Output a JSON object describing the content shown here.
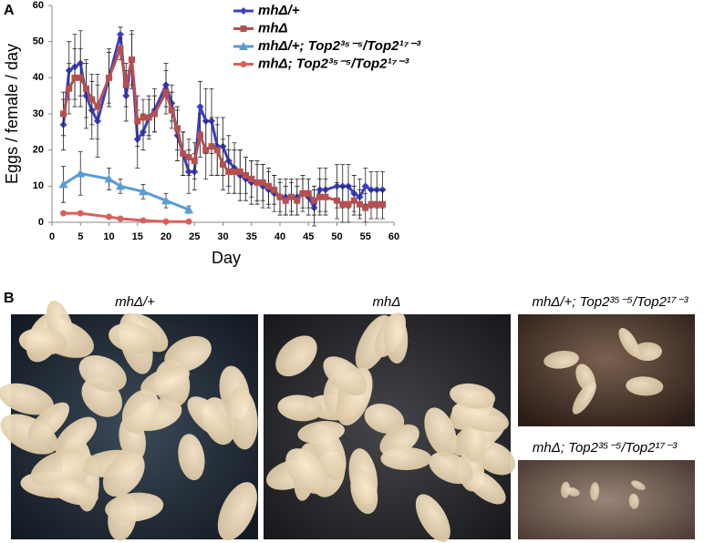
{
  "panel_a_label": "A",
  "chart_data": {
    "type": "line",
    "xlabel": "Day",
    "ylabel": "Eggs / female / day",
    "xlim": [
      0,
      60
    ],
    "xticks": [
      0,
      5,
      10,
      15,
      20,
      25,
      30,
      35,
      40,
      45,
      50,
      55,
      60
    ],
    "ylim": [
      0,
      60
    ],
    "yticks": [
      0,
      10,
      20,
      30,
      40,
      50,
      60
    ],
    "series": [
      {
        "name": "mhΔ/+",
        "color": "#3b3fc4",
        "marker": "diamond",
        "x": [
          2,
          3,
          4,
          5,
          6,
          7,
          8,
          10,
          12,
          13,
          14,
          15,
          16,
          17,
          18,
          20,
          21,
          22,
          23,
          24,
          25,
          26,
          27,
          28,
          29,
          30,
          31,
          32,
          33,
          34,
          35,
          36,
          37,
          38,
          39,
          40,
          41,
          42,
          43,
          44,
          45,
          46,
          47,
          48,
          50,
          51,
          52,
          53,
          54,
          55,
          56,
          57,
          58
        ],
        "values": [
          27,
          42,
          43,
          44,
          35,
          31,
          28,
          40,
          52,
          35,
          45,
          23,
          25,
          29,
          31,
          38,
          33,
          24,
          19,
          14,
          14,
          32,
          28,
          28,
          21,
          21,
          17,
          15,
          13,
          12,
          11,
          11,
          10,
          9,
          8,
          7,
          7,
          7,
          7,
          8,
          7,
          4,
          9,
          9,
          10,
          10,
          10,
          8,
          7,
          10,
          9,
          9,
          9
        ],
        "errors": [
          7,
          8,
          9,
          9,
          9,
          8,
          10,
          8,
          2,
          7,
          8,
          8,
          5,
          6,
          6,
          6,
          5,
          7,
          6,
          6,
          5,
          7,
          9,
          9,
          8,
          8,
          7,
          7,
          7,
          6,
          6,
          6,
          6,
          5,
          5,
          5,
          5,
          5,
          5,
          5,
          5,
          5,
          6,
          6,
          6,
          6,
          6,
          5,
          5,
          5,
          5,
          5,
          5
        ]
      },
      {
        "name": "mhΔ",
        "color": "#b5504f",
        "marker": "square",
        "x": [
          2,
          3,
          4,
          5,
          6,
          7,
          8,
          10,
          12,
          13,
          14,
          15,
          16,
          17,
          18,
          20,
          21,
          22,
          23,
          24,
          25,
          26,
          27,
          28,
          29,
          30,
          31,
          32,
          33,
          34,
          35,
          36,
          37,
          38,
          39,
          40,
          41,
          42,
          43,
          44,
          45,
          46,
          47,
          48,
          50,
          51,
          52,
          53,
          54,
          55,
          56,
          57,
          58
        ],
        "values": [
          30,
          37,
          40,
          40,
          37,
          34,
          32,
          40,
          48,
          38,
          45,
          28,
          29,
          29,
          30,
          36,
          31,
          26,
          19,
          18,
          17,
          24,
          20,
          21,
          20,
          16,
          14,
          14,
          14,
          13,
          12,
          11,
          11,
          10,
          9,
          7,
          6,
          7,
          6,
          8,
          8,
          6,
          7,
          7,
          6,
          5,
          5,
          6,
          5,
          4,
          5,
          5,
          5
        ],
        "errors": [
          6,
          7,
          8,
          8,
          8,
          7,
          9,
          7,
          3,
          6,
          7,
          7,
          5,
          5,
          5,
          6,
          5,
          6,
          6,
          5,
          5,
          6,
          8,
          8,
          7,
          7,
          6,
          6,
          6,
          5,
          5,
          5,
          5,
          5,
          4,
          4,
          4,
          4,
          4,
          4,
          4,
          4,
          5,
          5,
          5,
          5,
          5,
          4,
          4,
          4,
          4,
          4,
          4
        ]
      },
      {
        "name": "mhΔ/+; Top2³⁵⁻⁵/Top2¹⁷⁻³",
        "color": "#5b9bd5",
        "marker": "triangle",
        "x": [
          2,
          5,
          10,
          12,
          16,
          20,
          24
        ],
        "values": [
          10.5,
          13.5,
          12,
          10,
          8.5,
          6,
          3.5
        ],
        "errors": [
          5,
          6,
          3,
          2,
          2,
          2,
          1
        ]
      },
      {
        "name": "mhΔ; Top2³⁵⁻⁵/Top2¹⁷⁻³",
        "color": "#d9605e",
        "marker": "circle",
        "x": [
          2,
          5,
          10,
          12,
          16,
          20,
          24
        ],
        "values": [
          2.5,
          2.5,
          1.5,
          1,
          0.5,
          0.2,
          0.2
        ],
        "errors": [
          0.5,
          0.5,
          0.5,
          0.4,
          0.3,
          0.2,
          0.2
        ]
      }
    ]
  },
  "panel_b": {
    "label": "B",
    "images": [
      {
        "caption": "mhΔ/+"
      },
      {
        "caption": "mhΔ"
      },
      {
        "caption": "mhΔ/+; Top2³⁵⁻⁵/Top2¹⁷⁻³"
      },
      {
        "caption": "mhΔ; Top2³⁵⁻⁵/Top2¹⁷⁻³"
      }
    ]
  }
}
